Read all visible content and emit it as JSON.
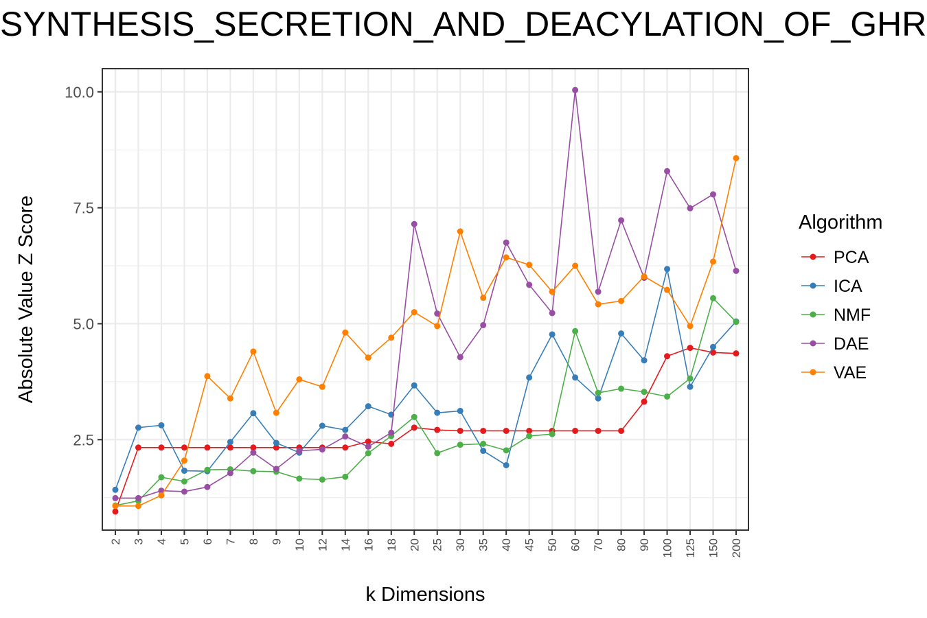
{
  "chart_data": {
    "type": "line",
    "title": "SYNTHESIS_SECRETION_AND_DEACYLATION_OF_GHRELIN",
    "xlabel": "k Dimensions",
    "ylabel": "Absolute Value Z Score",
    "categories": [
      "2",
      "3",
      "4",
      "5",
      "6",
      "7",
      "8",
      "9",
      "10",
      "12",
      "14",
      "16",
      "18",
      "20",
      "25",
      "30",
      "35",
      "40",
      "45",
      "50",
      "60",
      "70",
      "80",
      "90",
      "100",
      "125",
      "150",
      "200"
    ],
    "ylim": [
      0.55,
      10.5
    ],
    "yticks": [
      2.5,
      5.0,
      7.5,
      10.0
    ],
    "ytick_labels": [
      "2.5",
      "5.0",
      "7.5",
      "10.0"
    ],
    "grid": true,
    "legend_title": "Algorithm",
    "legend_position": "right",
    "series": [
      {
        "name": "PCA",
        "color": "#E41A1C",
        "values": [
          0.95,
          2.33,
          2.33,
          2.33,
          2.33,
          2.33,
          2.33,
          2.33,
          2.33,
          2.33,
          2.33,
          2.46,
          2.41,
          2.76,
          2.71,
          2.69,
          2.69,
          2.69,
          2.69,
          2.69,
          2.69,
          2.69,
          2.69,
          3.32,
          4.3,
          4.48,
          4.38,
          4.36
        ]
      },
      {
        "name": "ICA",
        "color": "#377EB8",
        "values": [
          1.42,
          2.76,
          2.81,
          1.83,
          1.82,
          2.45,
          3.07,
          2.43,
          2.22,
          2.8,
          2.71,
          3.22,
          3.04,
          3.67,
          3.08,
          3.12,
          2.26,
          1.95,
          3.84,
          4.77,
          3.84,
          3.39,
          4.79,
          4.21,
          6.18,
          3.64,
          4.5,
          5.05
        ]
      },
      {
        "name": "NMF",
        "color": "#4DAF4A",
        "values": [
          1.08,
          1.18,
          1.69,
          1.6,
          1.85,
          1.86,
          1.82,
          1.81,
          1.66,
          1.64,
          1.7,
          2.21,
          2.58,
          2.99,
          2.21,
          2.39,
          2.41,
          2.27,
          2.58,
          2.62,
          4.84,
          3.51,
          3.6,
          3.53,
          3.43,
          3.82,
          5.55,
          5.04
        ]
      },
      {
        "name": "DAE",
        "color": "#984EA3",
        "values": [
          1.24,
          1.24,
          1.4,
          1.38,
          1.48,
          1.78,
          2.22,
          1.87,
          2.26,
          2.29,
          2.57,
          2.35,
          2.65,
          7.15,
          5.22,
          4.28,
          4.97,
          6.75,
          5.84,
          5.23,
          10.04,
          5.69,
          7.23,
          5.99,
          8.29,
          7.49,
          7.79,
          6.14
        ]
      },
      {
        "name": "VAE",
        "color": "#FF7F00",
        "values": [
          1.07,
          1.07,
          1.3,
          2.05,
          3.87,
          3.39,
          4.4,
          3.08,
          3.8,
          3.64,
          4.81,
          4.27,
          4.7,
          5.25,
          4.95,
          6.99,
          5.56,
          6.43,
          6.27,
          5.69,
          6.25,
          5.42,
          5.49,
          6.02,
          5.73,
          4.95,
          6.34,
          8.57
        ]
      }
    ]
  }
}
